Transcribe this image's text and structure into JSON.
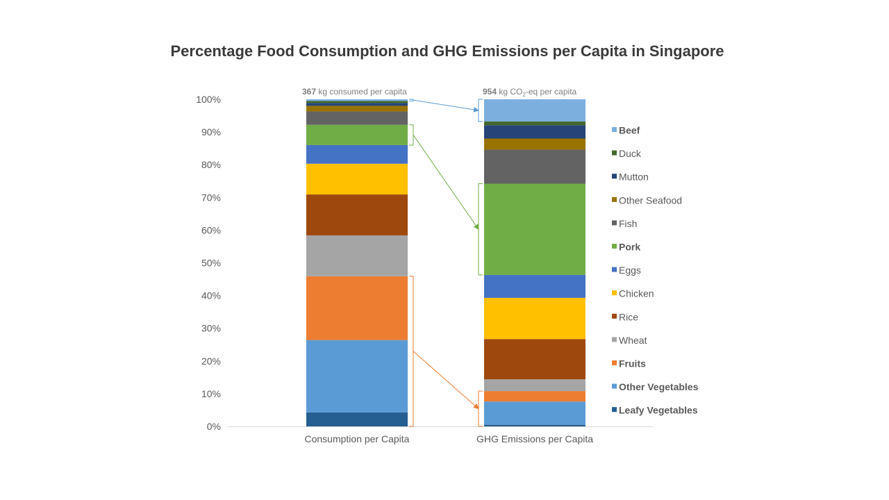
{
  "chart_data": {
    "type": "bar",
    "stacked": "percent",
    "title": "Percentage Food Consumption and GHG Emissions per Capita in Singapore",
    "categories": [
      "Consumption per Capita",
      "GHG Emissions per Capita"
    ],
    "ylim": [
      0,
      100
    ],
    "yticks": [
      "0%",
      "10%",
      "20%",
      "30%",
      "40%",
      "50%",
      "60%",
      "70%",
      "80%",
      "90%",
      "100%"
    ],
    "grid": false,
    "legend_position": "right",
    "bar_annotations": [
      {
        "value": "367",
        "rest": " kg consumed  per capita"
      },
      {
        "value": "954",
        "rest_pre": " kg CO",
        "sub": "2",
        "rest_post": "-eq  per capita"
      }
    ],
    "series": [
      {
        "name": "Leafy Vegetables",
        "color": "#255e91",
        "bold": true,
        "values": [
          4.3,
          0.5
        ]
      },
      {
        "name": "Other Vegetables",
        "color": "#5b9bd5",
        "bold": true,
        "values": [
          22.1,
          7.1
        ]
      },
      {
        "name": "Fruits",
        "color": "#ed7d31",
        "bold": true,
        "values": [
          19.5,
          3.2
        ]
      },
      {
        "name": "Wheat",
        "color": "#a5a5a5",
        "bold": false,
        "values": [
          12.5,
          3.6
        ]
      },
      {
        "name": "Rice",
        "color": "#9e480e",
        "bold": false,
        "values": [
          12.5,
          12.3
        ]
      },
      {
        "name": "Chicken",
        "color": "#ffc000",
        "bold": false,
        "values": [
          9.4,
          12.6
        ]
      },
      {
        "name": "Eggs",
        "color": "#4472c4",
        "bold": false,
        "values": [
          5.7,
          7.0
        ]
      },
      {
        "name": "Pork",
        "color": "#70ad47",
        "bold": true,
        "values": [
          6.2,
          27.9
        ]
      },
      {
        "name": "Fish",
        "color": "#636363",
        "bold": false,
        "values": [
          4.1,
          10.4
        ]
      },
      {
        "name": "Other Seafood",
        "color": "#997300",
        "bold": false,
        "values": [
          1.7,
          3.4
        ]
      },
      {
        "name": "Mutton",
        "color": "#264478",
        "bold": false,
        "values": [
          0.9,
          4.1
        ]
      },
      {
        "name": "Duck",
        "color": "#43682b",
        "bold": false,
        "values": [
          0.6,
          1.1
        ]
      },
      {
        "name": "Beef",
        "color": "#7cafdd",
        "bold": true,
        "values": [
          0.5,
          6.8
        ]
      }
    ],
    "callouts": [
      {
        "series": "Beef",
        "color": "#5b9bd5"
      },
      {
        "series": "Pork",
        "color": "#70ad47"
      },
      {
        "series": "Fruits+Vegetables",
        "from": [
          "Leafy Vegetables",
          "Other Vegetables",
          "Fruits"
        ],
        "color": "#ed7d31"
      }
    ]
  }
}
